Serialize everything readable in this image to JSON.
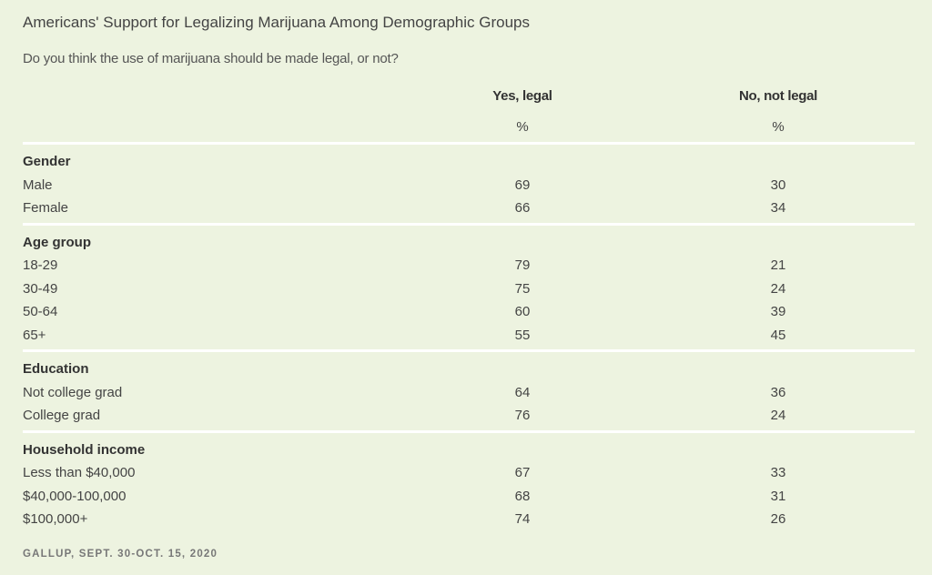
{
  "chart_data": {
    "type": "table",
    "title": "Americans' Support for Legalizing Marijuana Among Demographic Groups",
    "subtitle": "Do you think the use of marijuana should be made legal, or not?",
    "columns": [
      {
        "label": "Yes, legal",
        "unit": "%"
      },
      {
        "label": "No, not legal",
        "unit": "%"
      }
    ],
    "groups": [
      {
        "name": "Gender",
        "rows": [
          {
            "label": "Male",
            "values": [
              "69",
              "30"
            ]
          },
          {
            "label": "Female",
            "values": [
              "66",
              "34"
            ]
          }
        ]
      },
      {
        "name": "Age group",
        "rows": [
          {
            "label": "18-29",
            "values": [
              "79",
              "21"
            ]
          },
          {
            "label": "30-49",
            "values": [
              "75",
              "24"
            ]
          },
          {
            "label": "50-64",
            "values": [
              "60",
              "39"
            ]
          },
          {
            "label": "65+",
            "values": [
              "55",
              "45"
            ]
          }
        ]
      },
      {
        "name": "Education",
        "rows": [
          {
            "label": "Not college grad",
            "values": [
              "64",
              "36"
            ]
          },
          {
            "label": "College grad",
            "values": [
              "76",
              "24"
            ]
          }
        ]
      },
      {
        "name": "Household income",
        "rows": [
          {
            "label": "Less than $40,000",
            "values": [
              "67",
              "33"
            ]
          },
          {
            "label": "$40,000-100,000",
            "values": [
              "68",
              "31"
            ]
          },
          {
            "label": "$100,000+",
            "values": [
              "74",
              "26"
            ]
          }
        ]
      }
    ],
    "source": "GALLUP, SEPT. 30-OCT. 15, 2020"
  }
}
